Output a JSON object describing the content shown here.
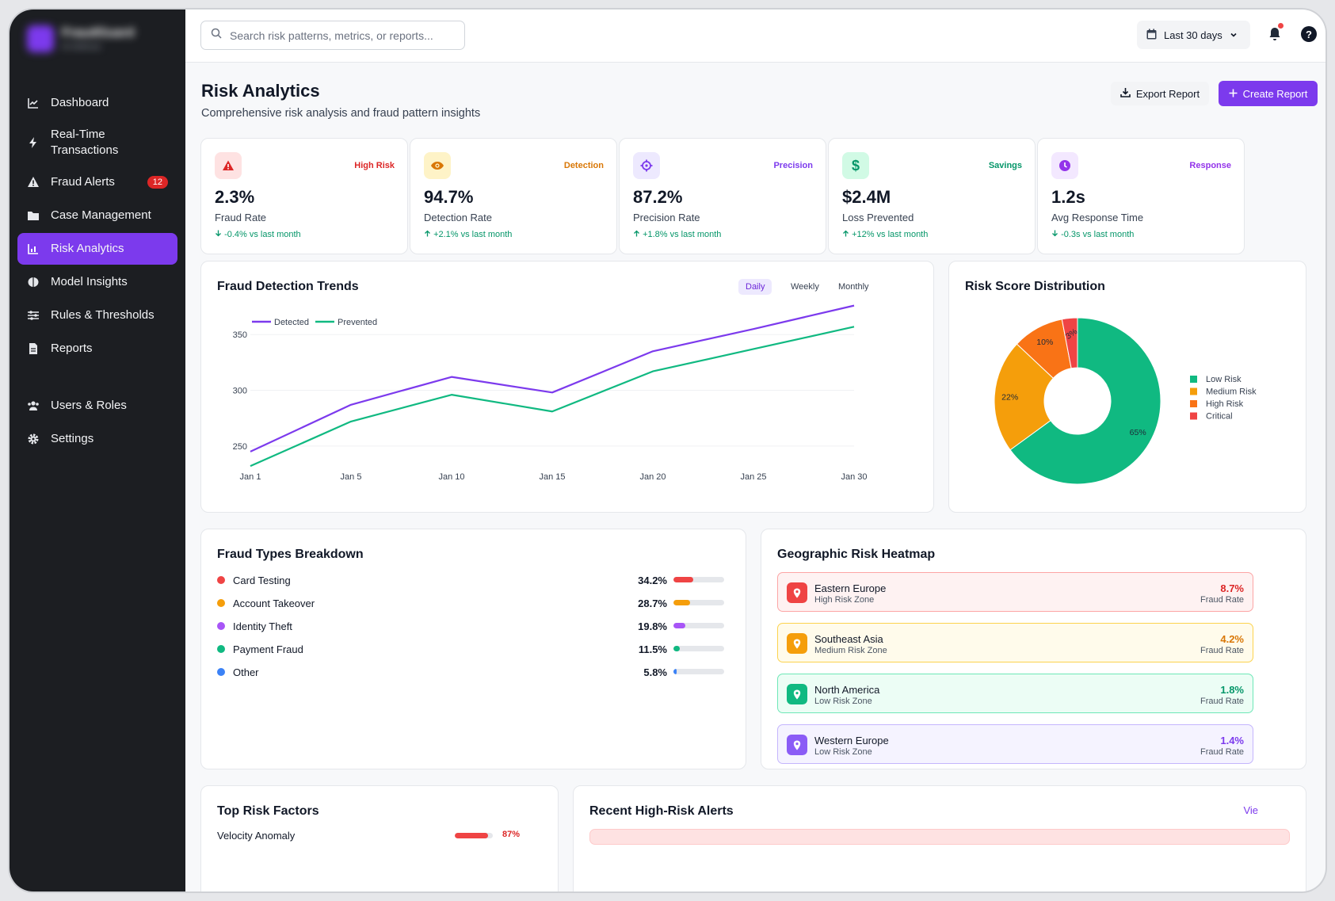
{
  "sidebar": {
    "brand_name": "FraudGuard",
    "brand_sub": "AI Defense",
    "items": [
      {
        "label": "Dashboard",
        "icon": "chart-line-icon"
      },
      {
        "label": "Real-Time Transactions",
        "icon": "bolt-icon"
      },
      {
        "label": "Fraud Alerts",
        "icon": "warning-icon",
        "badge": "12"
      },
      {
        "label": "Case Management",
        "icon": "folder-icon"
      },
      {
        "label": "Risk Analytics",
        "icon": "chart-bar-icon",
        "active": true
      },
      {
        "label": "Model Insights",
        "icon": "brain-icon"
      },
      {
        "label": "Rules & Thresholds",
        "icon": "sliders-icon"
      },
      {
        "label": "Reports",
        "icon": "file-icon"
      },
      {
        "label": "Users & Roles",
        "icon": "users-icon"
      },
      {
        "label": "Settings",
        "icon": "gear-icon"
      }
    ]
  },
  "topbar": {
    "search_placeholder": "Search risk patterns, metrics, or reports...",
    "date_range": "Last 30 days"
  },
  "page": {
    "title": "Risk Analytics",
    "subtitle": "Comprehensive risk analysis and fraud pattern insights",
    "export_label": "Export Report",
    "create_label": "Create Report"
  },
  "kpis": [
    {
      "tag": "High Risk",
      "value": "2.3%",
      "label": "Fraud Rate",
      "change": "-0.4% vs last month",
      "color": "#dc2626",
      "bg": "#fee2e2",
      "icon": "warning-icon",
      "direction": "down"
    },
    {
      "tag": "Detection",
      "value": "94.7%",
      "label": "Detection Rate",
      "change": "+2.1% vs last month",
      "color": "#d97706",
      "bg": "#fef3c7",
      "icon": "eye-icon",
      "direction": "up"
    },
    {
      "tag": "Precision",
      "value": "87.2%",
      "label": "Precision Rate",
      "change": "+1.8% vs last month",
      "color": "#7c3aed",
      "bg": "#ede9fe",
      "icon": "crosshair-icon",
      "direction": "up"
    },
    {
      "tag": "Savings",
      "value": "$2.4M",
      "label": "Loss Prevented",
      "change": "+12% vs last month",
      "color": "#059669",
      "bg": "#d1fae5",
      "icon": "dollar-icon",
      "direction": "up"
    },
    {
      "tag": "Response",
      "value": "1.2s",
      "label": "Avg Response Time",
      "change": "-0.3s vs last month",
      "color": "#9333ea",
      "bg": "#f3e8ff",
      "icon": "clock-icon",
      "direction": "down"
    }
  ],
  "trends": {
    "title": "Fraud Detection Trends",
    "tabs": [
      "Daily",
      "Weekly",
      "Monthly"
    ],
    "active_tab": "Daily"
  },
  "distribution": {
    "title": "Risk Score Distribution"
  },
  "chart_data": [
    {
      "type": "line",
      "x": [
        "Jan 1",
        "Jan 5",
        "Jan 10",
        "Jan 15",
        "Jan 20",
        "Jan 25",
        "Jan 30"
      ],
      "yticks": [
        250,
        300,
        350
      ],
      "ylim": [
        225,
        380
      ],
      "grid": true,
      "legend": "top-left",
      "series": [
        {
          "name": "Detected",
          "color": "#7c3aed",
          "values": [
            245,
            287,
            312,
            298,
            335,
            355,
            376
          ]
        },
        {
          "name": "Prevented",
          "color": "#10b981",
          "values": [
            232,
            272,
            296,
            281,
            317,
            337,
            357
          ]
        }
      ]
    },
    {
      "type": "pie",
      "donut": true,
      "legend": "right",
      "slices": [
        {
          "label": "Low Risk",
          "value": 65,
          "color": "#10b981"
        },
        {
          "label": "Medium Risk",
          "value": 22,
          "color": "#f59e0b"
        },
        {
          "label": "High Risk",
          "value": 10,
          "color": "#f97316"
        },
        {
          "label": "Critical",
          "value": 3,
          "color": "#ef4444"
        }
      ]
    }
  ],
  "fraud_types": {
    "title": "Fraud Types Breakdown",
    "items": [
      {
        "name": "Card Testing",
        "pct": "34.2%",
        "value": 34.2,
        "color": "#ef4444"
      },
      {
        "name": "Account Takeover",
        "pct": "28.7%",
        "value": 28.7,
        "color": "#f59e0b"
      },
      {
        "name": "Identity Theft",
        "pct": "19.8%",
        "value": 19.8,
        "color": "#a855f7"
      },
      {
        "name": "Payment Fraud",
        "pct": "11.5%",
        "value": 11.5,
        "color": "#10b981"
      },
      {
        "name": "Other",
        "pct": "5.8%",
        "value": 5.8,
        "color": "#3b82f6"
      }
    ]
  },
  "geo": {
    "title": "Geographic Risk Heatmap",
    "rate_label": "Fraud Rate",
    "regions": [
      {
        "name": "Eastern Europe",
        "zone": "High Risk Zone",
        "rate": "8.7%",
        "color": "#ef4444",
        "text": "#dc2626",
        "bg": "#fef2f2",
        "border": "#fca5a5"
      },
      {
        "name": "Southeast Asia",
        "zone": "Medium Risk Zone",
        "rate": "4.2%",
        "color": "#f59e0b",
        "text": "#d97706",
        "bg": "#fffbeb",
        "border": "#fcd34d"
      },
      {
        "name": "North America",
        "zone": "Low Risk Zone",
        "rate": "1.8%",
        "color": "#10b981",
        "text": "#059669",
        "bg": "#ecfdf5",
        "border": "#6ee7b7"
      },
      {
        "name": "Western Europe",
        "zone": "Low Risk Zone",
        "rate": "1.4%",
        "color": "#8b5cf6",
        "text": "#7c3aed",
        "bg": "#f5f3ff",
        "border": "#c4b5fd"
      }
    ]
  },
  "risk_factors": {
    "title": "Top Risk Factors",
    "items": [
      {
        "name": "Velocity Anomaly",
        "pct": "87%",
        "value": 87
      }
    ]
  },
  "alerts": {
    "title": "Recent High-Risk Alerts",
    "view_all": "Vie"
  }
}
